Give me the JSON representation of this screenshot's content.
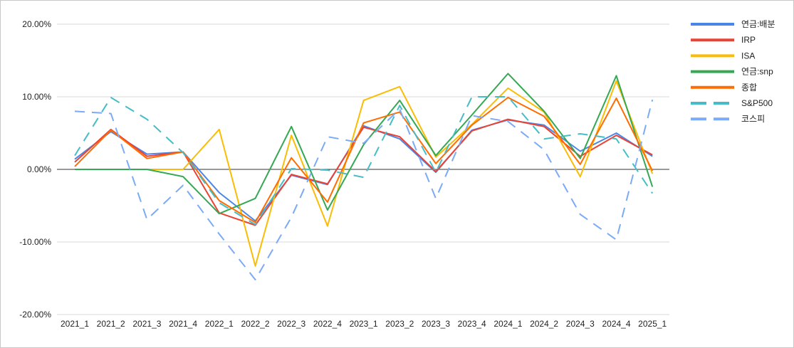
{
  "chart_data": {
    "type": "line",
    "title": "",
    "xlabel": "",
    "ylabel": "",
    "categories": [
      "2021_1",
      "2021_2",
      "2021_3",
      "2021_4",
      "2022_1",
      "2022_2",
      "2022_3",
      "2022_4",
      "2023_1",
      "2023_2",
      "2023_3",
      "2023_4",
      "2024_1",
      "2024_2",
      "2024_3",
      "2024_4",
      "2025_1"
    ],
    "ylim": [
      -0.2,
      0.2
    ],
    "yticks": [
      {
        "value": 0.2,
        "label": "20.00%"
      },
      {
        "value": 0.1,
        "label": "10.00%"
      },
      {
        "value": 0.0,
        "label": "0.00%"
      },
      {
        "value": -0.1,
        "label": "-10.00%"
      },
      {
        "value": -0.2,
        "label": "-20.00%"
      }
    ],
    "grid": true,
    "legend_position": "right",
    "series": [
      {
        "name": "연금:배분",
        "color": "#4a86e8",
        "dash": "solid",
        "values": [
          0.014,
          0.052,
          0.021,
          0.024,
          -0.032,
          -0.071,
          -0.008,
          -0.021,
          0.06,
          0.042,
          -0.004,
          0.054,
          0.068,
          0.061,
          0.025,
          0.05,
          0.018
        ]
      },
      {
        "name": "IRP",
        "color": "#ea4335",
        "dash": "solid",
        "values": [
          0.01,
          0.055,
          0.018,
          0.024,
          -0.06,
          -0.077,
          -0.007,
          -0.02,
          0.058,
          0.045,
          -0.003,
          0.053,
          0.069,
          0.059,
          0.018,
          0.047,
          0.02
        ]
      },
      {
        "name": "ISA",
        "color": "#fbbc04",
        "dash": "solid",
        "values": [
          0.0,
          0.0,
          0.0,
          0.0,
          0.055,
          -0.133,
          0.047,
          -0.078,
          0.095,
          0.114,
          0.017,
          0.062,
          0.112,
          0.079,
          -0.01,
          0.122,
          -0.006
        ]
      },
      {
        "name": "연금:snp",
        "color": "#34a853",
        "dash": "solid",
        "values": [
          0.0,
          0.0,
          0.0,
          -0.01,
          -0.061,
          -0.04,
          0.059,
          -0.056,
          0.034,
          0.095,
          0.019,
          0.075,
          0.132,
          0.08,
          0.015,
          0.129,
          -0.024
        ]
      },
      {
        "name": "종합",
        "color": "#ff6d01",
        "dash": "solid",
        "values": [
          0.004,
          0.054,
          0.015,
          0.024,
          -0.043,
          -0.073,
          0.016,
          -0.045,
          0.064,
          0.079,
          0.008,
          0.061,
          0.099,
          0.073,
          0.007,
          0.098,
          -0.002
        ]
      },
      {
        "name": "S&P500",
        "color": "#46bdc6",
        "dash": "long",
        "values": [
          0.019,
          0.099,
          0.069,
          0.023,
          -0.046,
          -0.076,
          0.001,
          -0.001,
          -0.011,
          0.088,
          -0.004,
          0.1,
          0.1,
          0.042,
          0.049,
          0.042,
          -0.033
        ]
      },
      {
        "name": "코스피",
        "color": "#7baaf7",
        "dash": "long",
        "values": [
          0.08,
          0.077,
          -0.069,
          -0.022,
          -0.089,
          -0.152,
          -0.066,
          0.045,
          0.036,
          0.083,
          -0.04,
          0.074,
          0.066,
          0.027,
          -0.062,
          -0.097,
          0.096
        ]
      }
    ]
  }
}
